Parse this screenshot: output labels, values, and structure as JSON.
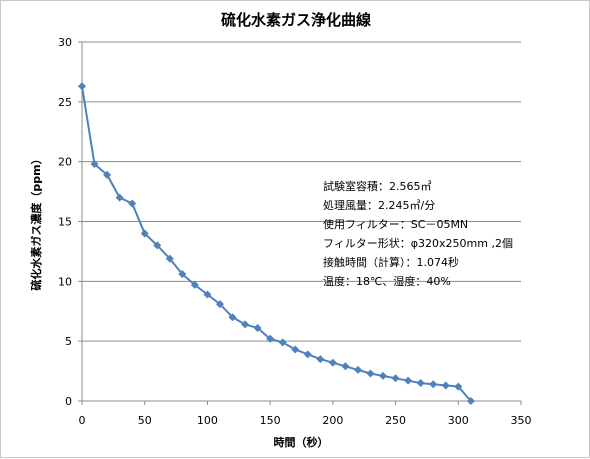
{
  "chart_data": {
    "type": "line",
    "title": "硫化水素ガス浄化曲線",
    "xlabel": "時間（秒）",
    "ylabel": "硫化水素ガス濃度（ppm）",
    "xlim": [
      0,
      350
    ],
    "ylim": [
      0,
      30
    ],
    "xticks": [
      0,
      50,
      100,
      150,
      200,
      250,
      300,
      350
    ],
    "yticks": [
      0,
      5,
      10,
      15,
      20,
      25,
      30
    ],
    "grid": "horizontal",
    "legend": "none",
    "series": [
      {
        "color": "#4f81bd",
        "marker": "diamond",
        "x": [
          0,
          10,
          20,
          30,
          40,
          50,
          60,
          70,
          80,
          90,
          100,
          110,
          120,
          130,
          140,
          150,
          160,
          170,
          180,
          190,
          200,
          210,
          220,
          230,
          240,
          250,
          260,
          270,
          280,
          290,
          300,
          310
        ],
        "y": [
          26.3,
          19.8,
          18.9,
          17.0,
          16.5,
          14.0,
          13.0,
          11.9,
          10.6,
          9.7,
          8.9,
          8.1,
          7.0,
          6.4,
          6.1,
          5.2,
          4.9,
          4.3,
          3.9,
          3.5,
          3.2,
          2.9,
          2.6,
          2.3,
          2.1,
          1.9,
          1.7,
          1.5,
          1.4,
          1.3,
          1.2,
          0.0
        ]
      }
    ],
    "annotations": [
      "試験室容積：2.565㎥",
      "処理風量：2.245㎥/分",
      "使用フィルター：SC－05MN",
      "フィルター形状：φ320x250mm ,2個",
      "接触時間（計算）：1.074秒",
      "温度：18℃、湿度：40%"
    ]
  }
}
